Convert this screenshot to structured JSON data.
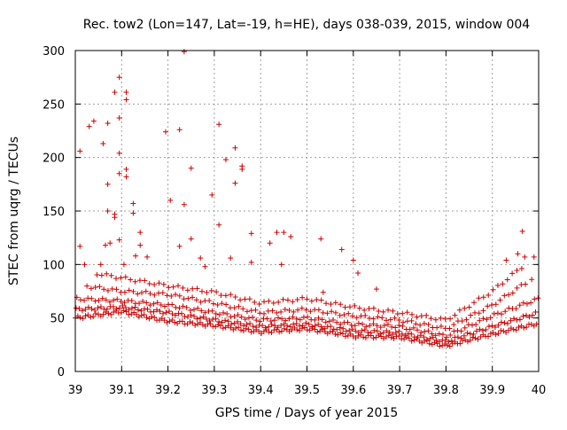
{
  "chart_data": {
    "type": "scatter",
    "title": "Rec. tow2 (Lon=147, Lat=-19, h=HE), days 038-039, 2015, window 004",
    "xlabel": "GPS time / Days of year 2015",
    "ylabel": "STEC from uqrg / TECUs",
    "xlim": [
      39,
      40
    ],
    "ylim": [
      0,
      300
    ],
    "x_ticks": [
      39,
      39.1,
      39.2,
      39.3,
      39.4,
      39.5,
      39.6,
      39.7,
      39.8,
      39.9,
      40
    ],
    "x_tick_labels": [
      "39",
      "39.1",
      "39.2",
      "39.3",
      "39.4",
      "39.5",
      "39.6",
      "39.7",
      "39.8",
      "39.9",
      "40"
    ],
    "y_ticks": [
      0,
      50,
      100,
      150,
      200,
      250,
      300
    ],
    "y_tick_labels": [
      "0",
      "50",
      "100",
      "150",
      "200",
      "250",
      "300"
    ],
    "grid": true,
    "marker": "+",
    "series_color": "#cc0000",
    "baseline_tracks": [
      {
        "name": "track-1",
        "x": [
          39.0,
          39.1,
          39.2,
          39.3,
          39.4,
          39.5,
          39.6,
          39.7,
          39.8,
          39.9,
          40.0
        ],
        "y": [
          50,
          56,
          47,
          43,
          37,
          40,
          33,
          32,
          24,
          35,
          45
        ]
      },
      {
        "name": "track-2",
        "x": [
          39.0,
          39.1,
          39.2,
          39.3,
          39.4,
          39.5,
          39.6,
          39.7,
          39.8,
          39.9,
          40.0
        ],
        "y": [
          58,
          60,
          55,
          48,
          42,
          44,
          38,
          36,
          28,
          42,
          55
        ]
      },
      {
        "name": "track-3",
        "x": [
          39.0,
          39.1,
          39.2,
          39.3,
          39.4,
          39.5,
          39.6,
          39.7,
          39.8,
          39.9,
          40.0
        ],
        "y": [
          68,
          66,
          62,
          55,
          48,
          50,
          44,
          42,
          33,
          52,
          68
        ]
      },
      {
        "name": "track-4",
        "x": [
          39.02,
          39.1,
          39.2,
          39.3,
          39.4,
          39.5,
          39.6,
          39.7,
          39.8,
          39.9,
          39.98
        ],
        "y": [
          80,
          75,
          72,
          64,
          55,
          58,
          52,
          48,
          40,
          62,
          85
        ]
      },
      {
        "name": "track-5",
        "x": [
          39.04,
          39.12,
          39.2,
          39.3,
          39.4,
          39.5,
          39.6,
          39.7,
          39.8,
          39.9,
          39.97
        ],
        "y": [
          92,
          86,
          80,
          74,
          64,
          68,
          60,
          55,
          48,
          75,
          100
        ]
      }
    ],
    "scatter_points": [
      {
        "x": 39.01,
        "y": 206
      },
      {
        "x": 39.03,
        "y": 229
      },
      {
        "x": 39.04,
        "y": 234
      },
      {
        "x": 39.06,
        "y": 213
      },
      {
        "x": 39.07,
        "y": 232
      },
      {
        "x": 39.07,
        "y": 175
      },
      {
        "x": 39.07,
        "y": 150
      },
      {
        "x": 39.085,
        "y": 261
      },
      {
        "x": 39.085,
        "y": 147
      },
      {
        "x": 39.085,
        "y": 144
      },
      {
        "x": 39.095,
        "y": 275
      },
      {
        "x": 39.095,
        "y": 237
      },
      {
        "x": 39.095,
        "y": 204
      },
      {
        "x": 39.095,
        "y": 185
      },
      {
        "x": 39.095,
        "y": 123
      },
      {
        "x": 39.11,
        "y": 261
      },
      {
        "x": 39.11,
        "y": 254
      },
      {
        "x": 39.11,
        "y": 189
      },
      {
        "x": 39.11,
        "y": 182
      },
      {
        "x": 39.125,
        "y": 157
      },
      {
        "x": 39.125,
        "y": 148
      },
      {
        "x": 39.14,
        "y": 130
      },
      {
        "x": 39.14,
        "y": 118
      },
      {
        "x": 39.195,
        "y": 224
      },
      {
        "x": 39.205,
        "y": 160
      },
      {
        "x": 39.225,
        "y": 226
      },
      {
        "x": 39.225,
        "y": 117
      },
      {
        "x": 39.235,
        "y": 299
      },
      {
        "x": 39.235,
        "y": 156
      },
      {
        "x": 39.25,
        "y": 190
      },
      {
        "x": 39.25,
        "y": 124
      },
      {
        "x": 39.295,
        "y": 165
      },
      {
        "x": 39.31,
        "y": 231
      },
      {
        "x": 39.31,
        "y": 137
      },
      {
        "x": 39.325,
        "y": 198
      },
      {
        "x": 39.345,
        "y": 209
      },
      {
        "x": 39.345,
        "y": 176
      },
      {
        "x": 39.36,
        "y": 192
      },
      {
        "x": 39.36,
        "y": 189
      },
      {
        "x": 39.38,
        "y": 129
      },
      {
        "x": 39.38,
        "y": 102
      },
      {
        "x": 39.335,
        "y": 106
      },
      {
        "x": 39.42,
        "y": 120
      },
      {
        "x": 39.435,
        "y": 130
      },
      {
        "x": 39.45,
        "y": 130
      },
      {
        "x": 39.445,
        "y": 100
      },
      {
        "x": 39.465,
        "y": 126
      },
      {
        "x": 39.53,
        "y": 124
      },
      {
        "x": 39.575,
        "y": 114
      },
      {
        "x": 39.6,
        "y": 104
      },
      {
        "x": 39.61,
        "y": 92
      },
      {
        "x": 39.01,
        "y": 117
      },
      {
        "x": 39.02,
        "y": 100
      },
      {
        "x": 39.055,
        "y": 100
      },
      {
        "x": 39.065,
        "y": 118
      },
      {
        "x": 39.075,
        "y": 120
      },
      {
        "x": 39.105,
        "y": 100
      },
      {
        "x": 39.13,
        "y": 108
      },
      {
        "x": 39.155,
        "y": 107
      },
      {
        "x": 39.27,
        "y": 106
      },
      {
        "x": 39.28,
        "y": 98
      },
      {
        "x": 39.965,
        "y": 131
      },
      {
        "x": 39.93,
        "y": 104
      },
      {
        "x": 39.955,
        "y": 110
      },
      {
        "x": 39.97,
        "y": 107
      },
      {
        "x": 39.99,
        "y": 107
      },
      {
        "x": 39.985,
        "y": 86
      },
      {
        "x": 39.65,
        "y": 77
      },
      {
        "x": 39.535,
        "y": 74
      }
    ]
  }
}
